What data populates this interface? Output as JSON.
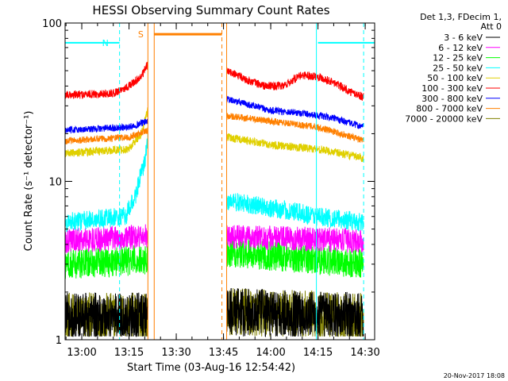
{
  "chart_data": {
    "type": "line",
    "title": "HESSI Observing Summary Count Rates",
    "xlabel": "Start Time (03-Aug-16 12:54:42)",
    "ylabel": "Count Rate (s⁻¹ detector⁻¹)",
    "yscale": "log",
    "ylim": [
      1,
      100
    ],
    "y_ticks": [
      {
        "value": 1,
        "label": "1"
      },
      {
        "value": 10,
        "label": "10"
      },
      {
        "value": 100,
        "label": "100"
      }
    ],
    "xlim": [
      "12:54:42",
      "14:33:00"
    ],
    "x_ticks": [
      {
        "time": "13:00",
        "label": "13:00"
      },
      {
        "time": "13:15",
        "label": "13:15"
      },
      {
        "time": "13:30",
        "label": "13:30"
      },
      {
        "time": "13:45",
        "label": "13:45"
      },
      {
        "time": "14:00",
        "label": "14:00"
      },
      {
        "time": "14:15",
        "label": "14:15"
      },
      {
        "time": "14:30",
        "label": "14:30"
      }
    ],
    "legend": {
      "placement": "right",
      "header_lines": [
        "Det 1,3, FDecim 1,",
        "Att 0"
      ],
      "entries": [
        {
          "label": "3 - 6 keV",
          "color": "#000000"
        },
        {
          "label": "6 - 12 keV",
          "color": "#ff00ff"
        },
        {
          "label": "12 - 25 keV",
          "color": "#00ff00"
        },
        {
          "label": "25 - 50 keV",
          "color": "#00ffff"
        },
        {
          "label": "50 - 100 keV",
          "color": "#e0d000"
        },
        {
          "label": "100 - 300 keV",
          "color": "#ff0000"
        },
        {
          "label": "300 - 800 keV",
          "color": "#0000ff"
        },
        {
          "label": "800 - 7000 keV",
          "color": "#ff8000"
        },
        {
          "label": "7000 - 20000 keV",
          "color": "#808000"
        }
      ]
    },
    "flags": [
      {
        "code": "N",
        "color": "#00ffff",
        "start": "12:54:42",
        "end": "13:12:00",
        "level": 75
      },
      {
        "code": "S",
        "color": "#ff8000",
        "start": "13:23:00",
        "end": "13:44:30",
        "level": 85
      },
      {
        "code": "N",
        "color": "#00ffff",
        "start": "14:15:00",
        "end": "14:33:00",
        "level": 75
      }
    ],
    "boundaries": [
      {
        "time": "13:12:00",
        "color": "#00ffff",
        "style": "dashed"
      },
      {
        "time": "13:21:00",
        "color": "#ff8000",
        "style": "solid"
      },
      {
        "time": "13:23:00",
        "color": "#ff8000",
        "style": "solid"
      },
      {
        "time": "13:44:30",
        "color": "#ff8000",
        "style": "dashed"
      },
      {
        "time": "13:46:00",
        "color": "#ff8000",
        "style": "solid"
      },
      {
        "time": "14:14:30",
        "color": "#00ffff",
        "style": "solid"
      },
      {
        "time": "14:29:30",
        "color": "#00ffff",
        "style": "dashed"
      }
    ],
    "gap": {
      "start": "13:21:00",
      "end": "13:46:00"
    },
    "series": [
      {
        "name": "100 - 300 keV",
        "color": "#ff0000",
        "noise": 0.06,
        "points": [
          [
            "12:54:42",
            35
          ],
          [
            "13:10:00",
            36
          ],
          [
            "13:15:00",
            40
          ],
          [
            "13:19:00",
            46
          ],
          [
            "13:21:00",
            55
          ],
          [
            "13:46:00",
            50
          ],
          [
            "13:52:00",
            44
          ],
          [
            "13:58:00",
            40
          ],
          [
            "14:04:00",
            40
          ],
          [
            "14:10:00",
            47
          ],
          [
            "14:15:00",
            46
          ],
          [
            "14:20:00",
            42
          ],
          [
            "14:25:00",
            37
          ],
          [
            "14:29:30",
            34
          ]
        ]
      },
      {
        "name": "300 - 800 keV",
        "color": "#0000ff",
        "noise": 0.05,
        "points": [
          [
            "12:54:42",
            21
          ],
          [
            "13:15:00",
            22
          ],
          [
            "13:21:00",
            24
          ],
          [
            "13:46:00",
            33
          ],
          [
            "14:00:00",
            28
          ],
          [
            "14:10:00",
            27
          ],
          [
            "14:20:00",
            25
          ],
          [
            "14:29:30",
            22
          ]
        ]
      },
      {
        "name": "800 - 7000 keV",
        "color": "#ff8000",
        "noise": 0.05,
        "points": [
          [
            "12:54:42",
            18
          ],
          [
            "13:15:00",
            19
          ],
          [
            "13:21:00",
            21
          ],
          [
            "13:46:00",
            26
          ],
          [
            "14:00:00",
            24
          ],
          [
            "14:15:00",
            22
          ],
          [
            "14:29:30",
            18
          ]
        ]
      },
      {
        "name": "50 - 100 keV",
        "color": "#e0d000",
        "noise": 0.06,
        "points": [
          [
            "12:54:42",
            15
          ],
          [
            "13:15:00",
            16
          ],
          [
            "13:19:00",
            20
          ],
          [
            "13:21:00",
            28
          ],
          [
            "13:46:00",
            19
          ],
          [
            "14:00:00",
            17
          ],
          [
            "14:15:00",
            16
          ],
          [
            "14:29:30",
            14
          ]
        ]
      },
      {
        "name": "25 - 50 keV",
        "color": "#00ffff",
        "noise": 0.14,
        "points": [
          [
            "12:54:42",
            5.5
          ],
          [
            "13:14:00",
            6
          ],
          [
            "13:17:00",
            8
          ],
          [
            "13:20:00",
            13
          ],
          [
            "13:21:00",
            18
          ],
          [
            "13:46:00",
            7.5
          ],
          [
            "14:00:00",
            6.8
          ],
          [
            "14:15:00",
            6
          ],
          [
            "14:29:30",
            5.5
          ]
        ]
      },
      {
        "name": "6 - 12 keV",
        "color": "#ff00ff",
        "noise": 0.18,
        "points": [
          [
            "12:54:42",
            4.2
          ],
          [
            "13:21:00",
            4.5
          ],
          [
            "13:46:00",
            4.5
          ],
          [
            "14:29:30",
            4.2
          ]
        ]
      },
      {
        "name": "12 - 25 keV",
        "color": "#00ff00",
        "noise": 0.22,
        "points": [
          [
            "12:54:42",
            3.0
          ],
          [
            "13:21:00",
            3.2
          ],
          [
            "13:46:00",
            3.6
          ],
          [
            "14:29:30",
            3.0
          ]
        ]
      },
      {
        "name": "3 - 6 keV",
        "color": "#000000",
        "noise": 0.35,
        "points": [
          [
            "12:54:42",
            1.4
          ],
          [
            "13:21:00",
            1.4
          ],
          [
            "13:46:00",
            1.5
          ],
          [
            "14:29:30",
            1.4
          ]
        ]
      },
      {
        "name": "7000 - 20000 keV",
        "color": "#808000",
        "noise": 0.35,
        "points": [
          [
            "12:54:42",
            1.4
          ],
          [
            "13:21:00",
            1.4
          ],
          [
            "13:46:00",
            1.5
          ],
          [
            "14:29:30",
            1.4
          ]
        ]
      }
    ],
    "footer": "20-Nov-2017 18:08"
  }
}
